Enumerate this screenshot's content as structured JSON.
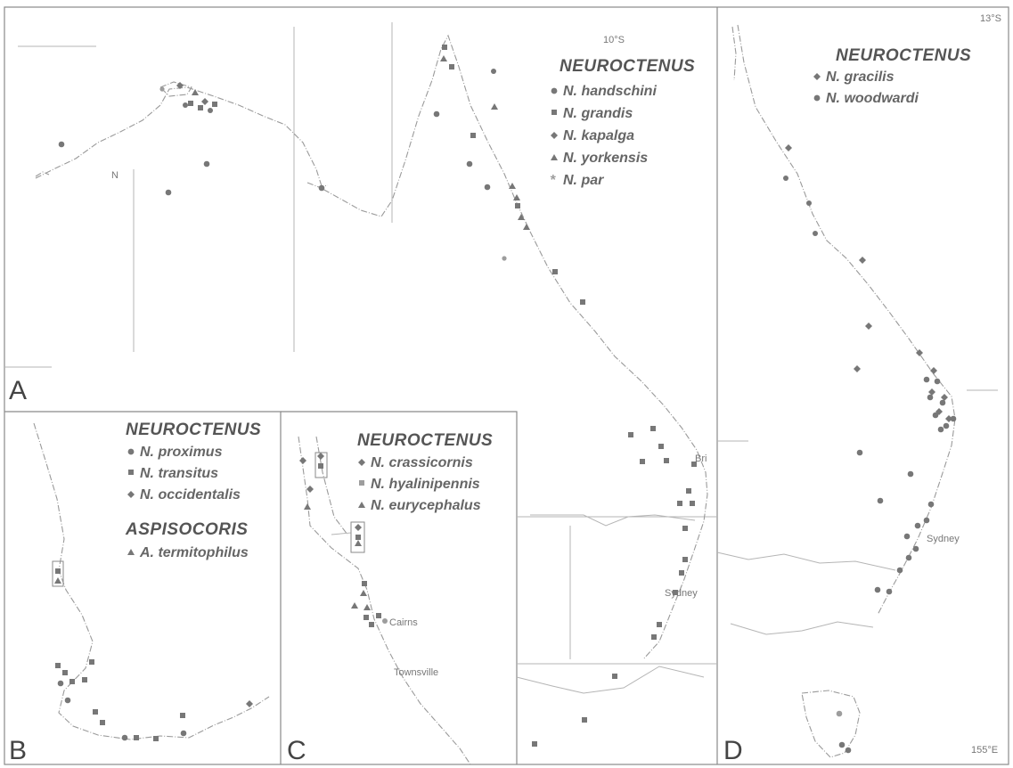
{
  "panels": {
    "a": {
      "letter": "A",
      "genus": "NEUROCTENUS",
      "species": [
        {
          "name": "N. handschini",
          "symbol": "circle"
        },
        {
          "name": "N. grandis",
          "symbol": "square"
        },
        {
          "name": "N. kapalga",
          "symbol": "diamond"
        },
        {
          "name": "N. yorkensis",
          "symbol": "triangle"
        },
        {
          "name": "N. par",
          "symbol": "star"
        }
      ],
      "latitude": "10°S",
      "places": {
        "brisbane": "Bri",
        "sydney": "Sydney"
      },
      "north": "N"
    },
    "b": {
      "letter": "B",
      "groups": [
        {
          "genus": "NEUROCTENUS",
          "species": [
            {
              "name": "N. proximus",
              "symbol": "circle"
            },
            {
              "name": "N. transitus",
              "symbol": "square"
            },
            {
              "name": "N. occidentalis",
              "symbol": "diamond"
            }
          ]
        },
        {
          "genus": "ASPISOCORIS",
          "species": [
            {
              "name": "A. termitophilus",
              "symbol": "triangle"
            }
          ]
        }
      ]
    },
    "c": {
      "letter": "C",
      "genus": "NEUROCTENUS",
      "species": [
        {
          "name": "N. crassicornis",
          "symbol": "diamond"
        },
        {
          "name": "N. hyalinipennis",
          "symbol": "square"
        },
        {
          "name": "N. eurycephalus",
          "symbol": "triangle"
        }
      ],
      "places": {
        "cairns": "Cairns",
        "townsville": "Townsville"
      }
    },
    "d": {
      "letter": "D",
      "genus": "NEUROCTENUS",
      "species": [
        {
          "name": "N. gracilis",
          "symbol": "diamond"
        },
        {
          "name": "N. woodwardi",
          "symbol": "circle"
        }
      ],
      "latitude": "13°S",
      "longitude": "155°E",
      "places": {
        "sydney": "Sydney"
      }
    }
  },
  "colors": {
    "ink": "#777777",
    "light": "#9d9d9d",
    "frame": "#8a8a8a"
  }
}
